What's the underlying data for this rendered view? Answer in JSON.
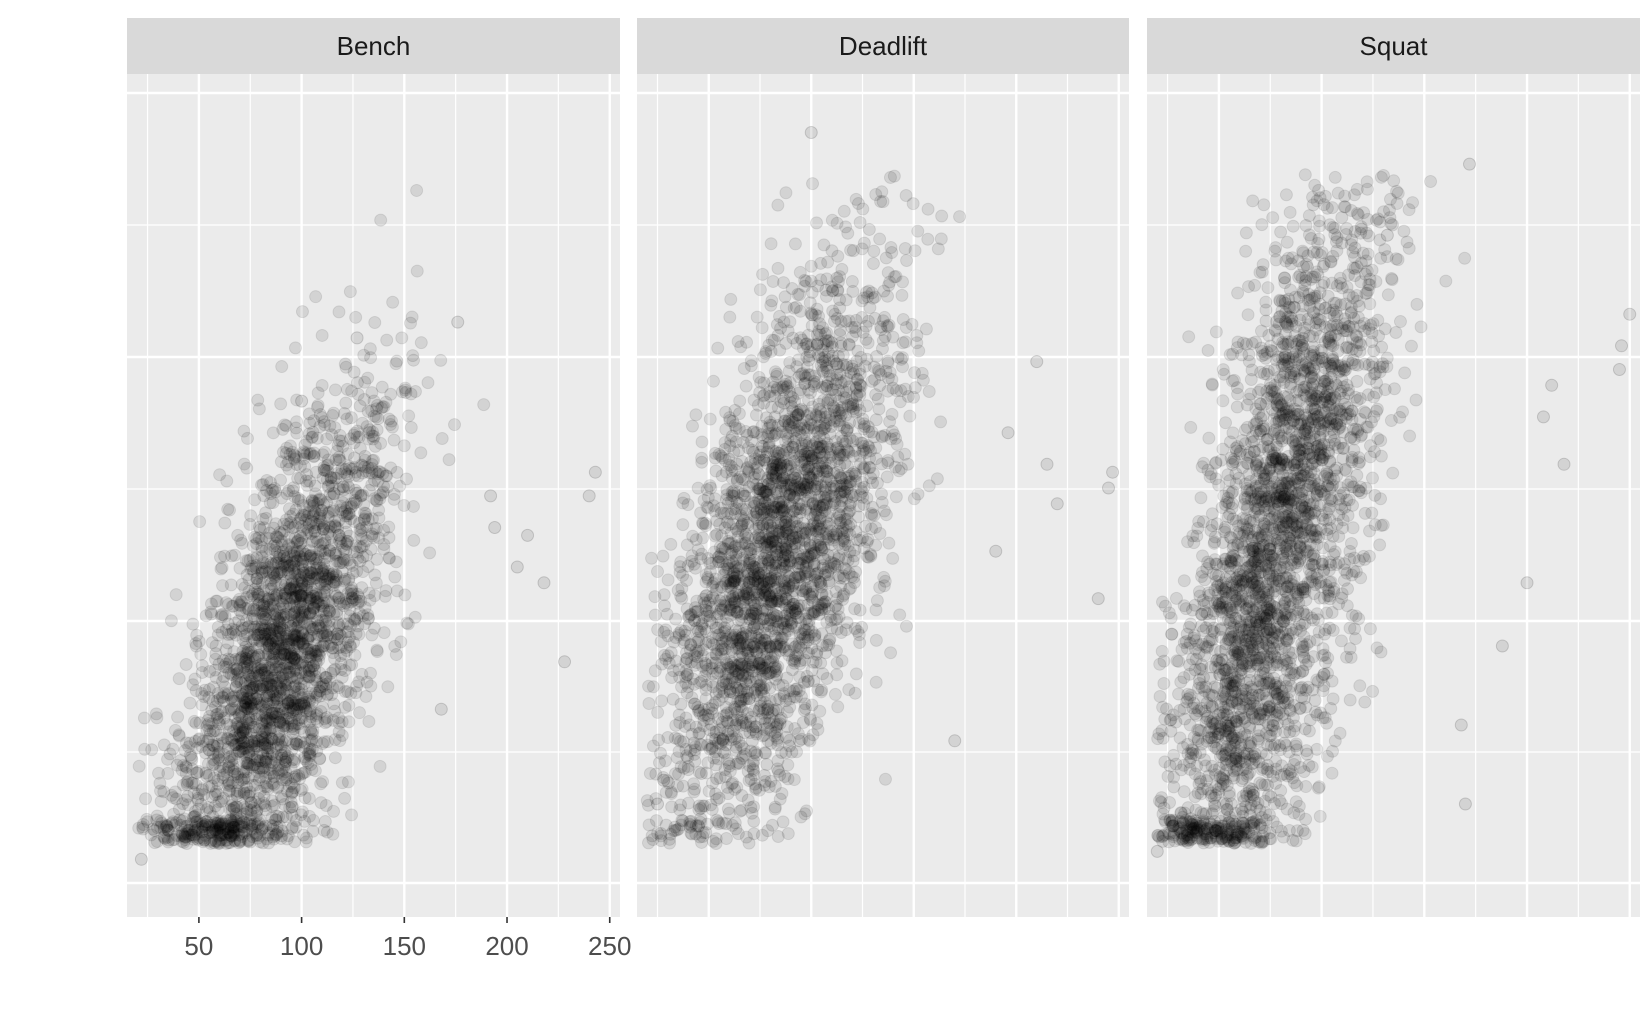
{
  "chart_data": {
    "type": "scatter",
    "title": "",
    "xlabel": "",
    "ylabel": "",
    "x_unit": "",
    "grid": true,
    "legend": "none",
    "point_color": "#000000",
    "point_alpha": 0.1,
    "panel_background": "#ebebeb",
    "strip_background": "#d9d9d9",
    "grid_color": "#ffffff",
    "x_axis": {
      "range": [
        15,
        255
      ],
      "ticks": [
        50,
        100,
        150,
        200,
        250
      ],
      "tick_labels": [
        "50",
        "100",
        "150",
        "200",
        "250"
      ]
    },
    "y_axis": {
      "range": [
        0,
        1
      ],
      "tick_labels_visible": false
    },
    "facets": [
      {
        "name": "Bench",
        "notable_points": [
          {
            "x": 176,
            "y": 0.71
          },
          {
            "x": 243,
            "y": 0.52
          },
          {
            "x": 240,
            "y": 0.49
          },
          {
            "x": 210,
            "y": 0.44
          },
          {
            "x": 218,
            "y": 0.38
          },
          {
            "x": 228,
            "y": 0.28
          },
          {
            "x": 205,
            "y": 0.4
          },
          {
            "x": 192,
            "y": 0.49
          },
          {
            "x": 194,
            "y": 0.45
          },
          {
            "x": 22,
            "y": 0.03
          },
          {
            "x": 127,
            "y": 0.69
          },
          {
            "x": 100,
            "y": 0.61
          },
          {
            "x": 168,
            "y": 0.22
          }
        ]
      },
      {
        "name": "Deadlift",
        "notable_points": [
          {
            "x": 100,
            "y": 0.95
          },
          {
            "x": 247,
            "y": 0.52
          },
          {
            "x": 245,
            "y": 0.5
          },
          {
            "x": 210,
            "y": 0.66
          },
          {
            "x": 196,
            "y": 0.57
          },
          {
            "x": 215,
            "y": 0.53
          },
          {
            "x": 220,
            "y": 0.48
          },
          {
            "x": 240,
            "y": 0.36
          },
          {
            "x": 190,
            "y": 0.42
          },
          {
            "x": 25,
            "y": 0.1
          },
          {
            "x": 28,
            "y": 0.13
          },
          {
            "x": 170,
            "y": 0.18
          }
        ]
      },
      {
        "name": "Squat",
        "notable_points": [
          {
            "x": 172,
            "y": 0.91
          },
          {
            "x": 132,
            "y": 0.82
          },
          {
            "x": 250,
            "y": 0.72
          },
          {
            "x": 246,
            "y": 0.68
          },
          {
            "x": 245,
            "y": 0.65
          },
          {
            "x": 212,
            "y": 0.63
          },
          {
            "x": 208,
            "y": 0.59
          },
          {
            "x": 218,
            "y": 0.53
          },
          {
            "x": 200,
            "y": 0.38
          },
          {
            "x": 20,
            "y": 0.04
          },
          {
            "x": 170,
            "y": 0.1
          },
          {
            "x": 168,
            "y": 0.2
          },
          {
            "x": 188,
            "y": 0.3
          }
        ]
      }
    ]
  }
}
